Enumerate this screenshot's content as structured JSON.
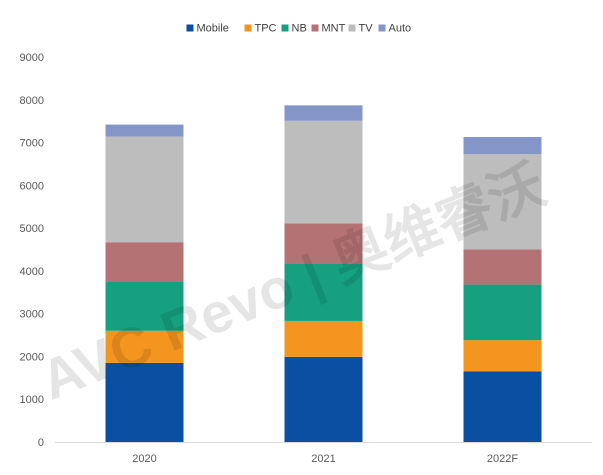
{
  "chart_data": {
    "type": "bar",
    "stacked": true,
    "categories": [
      "2020",
      "2021",
      "2022F"
    ],
    "series": [
      {
        "name": "Mobile",
        "color": "#0a4fa1",
        "values": [
          1850,
          1990,
          1650
        ]
      },
      {
        "name": "TPC",
        "color": "#f3951e",
        "values": [
          750,
          840,
          730
        ]
      },
      {
        "name": "NB",
        "color": "#16a07f",
        "values": [
          1160,
          1350,
          1300
        ]
      },
      {
        "name": "MNT",
        "color": "#b57275",
        "values": [
          910,
          930,
          820
        ]
      },
      {
        "name": "TV",
        "color": "#bdbdbd",
        "values": [
          2470,
          2400,
          2230
        ]
      },
      {
        "name": "Auto",
        "color": "#8496c8",
        "values": [
          280,
          360,
          400
        ]
      }
    ],
    "ylim": [
      0,
      9000
    ],
    "yticks": [
      0,
      1000,
      2000,
      3000,
      4000,
      5000,
      6000,
      7000,
      8000,
      9000
    ],
    "grid": false,
    "legend_position": "top-center",
    "title": "",
    "xlabel": "",
    "ylabel": ""
  }
}
